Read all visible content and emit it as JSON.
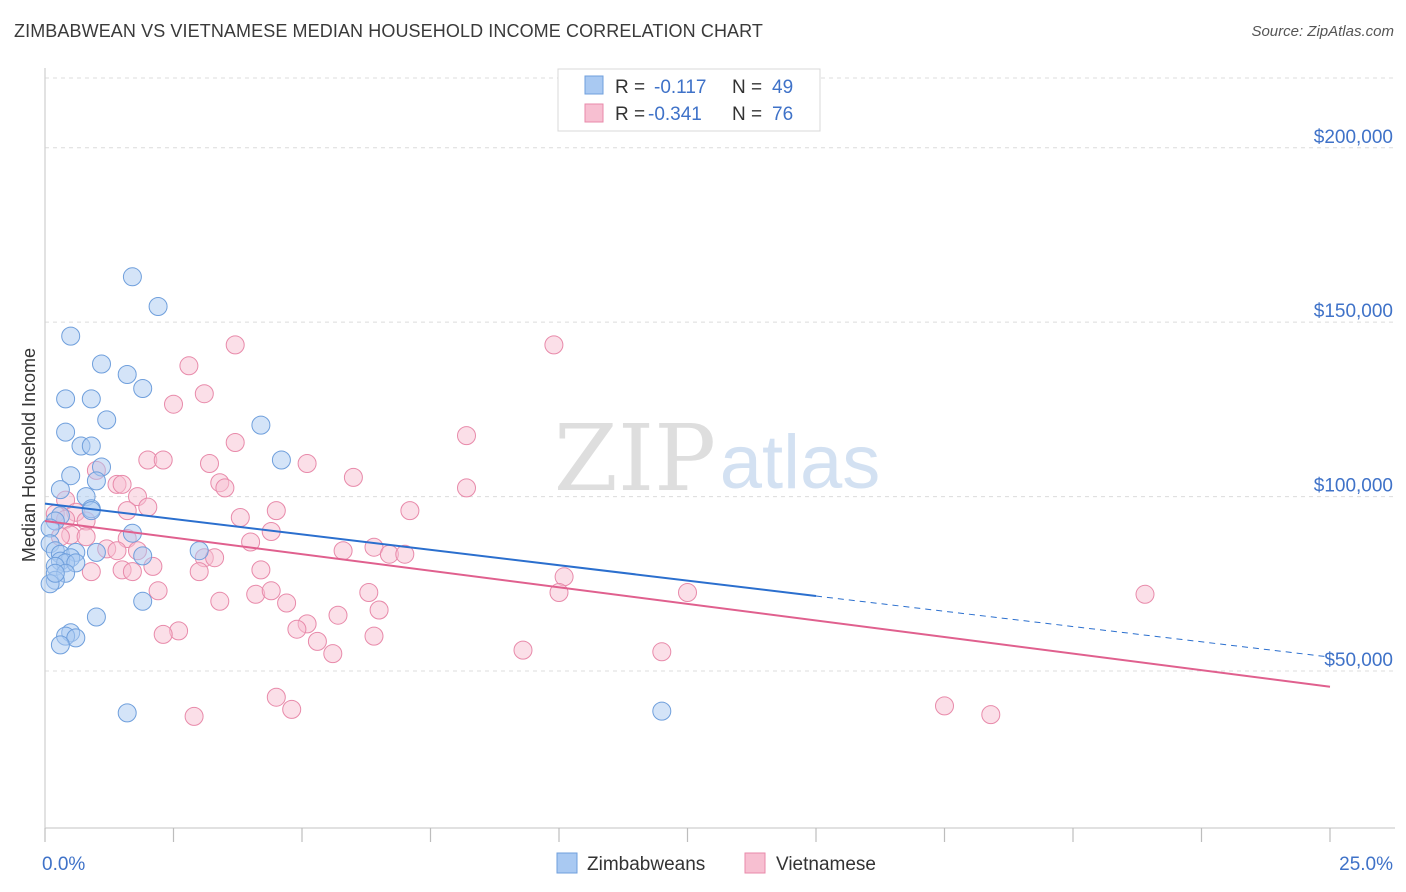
{
  "title": "ZIMBABWEAN VS VIETNAMESE MEDIAN HOUSEHOLD INCOME CORRELATION CHART",
  "source": "Source: ZipAtlas.com",
  "watermark": {
    "zip": "ZIP",
    "atlas": "atlas"
  },
  "colors": {
    "blue_fill": "#a9c9f2",
    "blue_stroke": "#6f9fdc",
    "blue_line": "#2b6fce",
    "pink_fill": "#f7bfd1",
    "pink_stroke": "#e88aaa",
    "pink_line": "#e0608e",
    "tick_label": "#3f72c8",
    "grid": "#dcdcdc"
  },
  "stats": [
    {
      "r_label": "R =",
      "r_value": "-0.117",
      "n_label": "N =",
      "n_value": "49"
    },
    {
      "r_label": "R =",
      "r_value": "-0.341",
      "n_label": "N =",
      "n_value": "76"
    }
  ],
  "chart_data": {
    "type": "scatter",
    "title": "ZIMBABWEAN VS VIETNAMESE MEDIAN HOUSEHOLD INCOME CORRELATION CHART",
    "xlabel": "",
    "ylabel": "Median Household Income",
    "xlim": [
      0,
      25
    ],
    "ylim": [
      5000,
      220000
    ],
    "x_tick_labels": [
      "0.0%",
      "25.0%"
    ],
    "y_ticks": [
      50000,
      100000,
      150000,
      200000
    ],
    "y_tick_labels": [
      "$50,000",
      "$100,000",
      "$150,000",
      "$200,000"
    ],
    "grid": true,
    "legend_position": "bottom-center",
    "series": [
      {
        "name": "Zimbabweans",
        "color": "blue",
        "trend": {
          "x": [
            0,
            15.0
          ],
          "y": [
            98000,
            71500
          ],
          "dashed_to_x": 25.0,
          "dashed_end_y": 54000
        },
        "points": [
          [
            1.7,
            163000
          ],
          [
            2.2,
            154500
          ],
          [
            0.5,
            146000
          ],
          [
            1.1,
            138000
          ],
          [
            1.6,
            135000
          ],
          [
            1.9,
            131000
          ],
          [
            0.4,
            128000
          ],
          [
            0.9,
            128000
          ],
          [
            1.2,
            122000
          ],
          [
            4.2,
            120500
          ],
          [
            0.4,
            118500
          ],
          [
            0.7,
            114500
          ],
          [
            0.9,
            114500
          ],
          [
            4.6,
            110500
          ],
          [
            1.1,
            108500
          ],
          [
            0.5,
            106000
          ],
          [
            1.0,
            104500
          ],
          [
            0.3,
            102000
          ],
          [
            0.8,
            100000
          ],
          [
            0.9,
            96500
          ],
          [
            0.3,
            94500
          ],
          [
            0.2,
            93000
          ],
          [
            0.1,
            91000
          ],
          [
            1.7,
            89500
          ],
          [
            0.1,
            86500
          ],
          [
            0.2,
            84500
          ],
          [
            0.3,
            83500
          ],
          [
            0.6,
            84000
          ],
          [
            1.0,
            84000
          ],
          [
            3.0,
            84500
          ],
          [
            1.9,
            83000
          ],
          [
            0.5,
            82500
          ],
          [
            0.3,
            81500
          ],
          [
            0.4,
            81000
          ],
          [
            0.2,
            80000
          ],
          [
            0.6,
            81000
          ],
          [
            0.4,
            78000
          ],
          [
            0.2,
            76000
          ],
          [
            0.1,
            75000
          ],
          [
            1.9,
            70000
          ],
          [
            1.0,
            65500
          ],
          [
            0.5,
            61000
          ],
          [
            0.4,
            60000
          ],
          [
            0.6,
            59500
          ],
          [
            0.3,
            57500
          ],
          [
            1.6,
            38000
          ],
          [
            12.0,
            38500
          ],
          [
            0.2,
            78000
          ],
          [
            0.9,
            96000
          ]
        ]
      },
      {
        "name": "Vietnamese",
        "color": "pink",
        "trend": {
          "x": [
            0,
            25.0
          ],
          "y": [
            93000,
            45500
          ]
        },
        "points": [
          [
            3.7,
            143500
          ],
          [
            9.9,
            143500
          ],
          [
            2.8,
            137500
          ],
          [
            3.1,
            129500
          ],
          [
            2.5,
            126500
          ],
          [
            8.2,
            117500
          ],
          [
            3.7,
            115500
          ],
          [
            2.0,
            110500
          ],
          [
            2.3,
            110500
          ],
          [
            3.2,
            109500
          ],
          [
            5.1,
            109500
          ],
          [
            6.0,
            105500
          ],
          [
            1.0,
            107500
          ],
          [
            1.4,
            103500
          ],
          [
            1.5,
            103500
          ],
          [
            3.4,
            104000
          ],
          [
            3.5,
            102500
          ],
          [
            8.2,
            102500
          ],
          [
            1.8,
            100000
          ],
          [
            0.4,
            99000
          ],
          [
            2.0,
            97000
          ],
          [
            4.5,
            96000
          ],
          [
            0.6,
            95500
          ],
          [
            0.2,
            95000
          ],
          [
            0.4,
            93500
          ],
          [
            0.8,
            93000
          ],
          [
            3.8,
            94000
          ],
          [
            4.4,
            90000
          ],
          [
            0.5,
            89000
          ],
          [
            0.8,
            88500
          ],
          [
            1.6,
            88000
          ],
          [
            4.0,
            87000
          ],
          [
            6.4,
            85500
          ],
          [
            5.8,
            84500
          ],
          [
            1.2,
            85000
          ],
          [
            1.4,
            84500
          ],
          [
            1.8,
            84500
          ],
          [
            6.7,
            83500
          ],
          [
            7.0,
            83500
          ],
          [
            3.1,
            82500
          ],
          [
            3.3,
            82500
          ],
          [
            2.1,
            80000
          ],
          [
            1.5,
            79000
          ],
          [
            1.7,
            78500
          ],
          [
            4.2,
            79000
          ],
          [
            0.9,
            78500
          ],
          [
            3.0,
            78500
          ],
          [
            10.1,
            77000
          ],
          [
            10.0,
            72500
          ],
          [
            12.5,
            72500
          ],
          [
            21.4,
            72000
          ],
          [
            4.1,
            72000
          ],
          [
            6.3,
            72500
          ],
          [
            2.2,
            73000
          ],
          [
            4.4,
            73000
          ],
          [
            3.4,
            70000
          ],
          [
            4.7,
            69500
          ],
          [
            6.5,
            67500
          ],
          [
            5.7,
            66000
          ],
          [
            5.1,
            63500
          ],
          [
            4.9,
            62000
          ],
          [
            2.6,
            61500
          ],
          [
            2.3,
            60500
          ],
          [
            6.4,
            60000
          ],
          [
            5.3,
            58500
          ],
          [
            9.3,
            56000
          ],
          [
            12.0,
            55500
          ],
          [
            5.6,
            55000
          ],
          [
            4.5,
            42500
          ],
          [
            17.5,
            40000
          ],
          [
            4.8,
            39000
          ],
          [
            2.9,
            37000
          ],
          [
            18.4,
            37500
          ],
          [
            0.3,
            88500
          ],
          [
            1.6,
            96000
          ],
          [
            7.1,
            96000
          ]
        ]
      }
    ]
  }
}
